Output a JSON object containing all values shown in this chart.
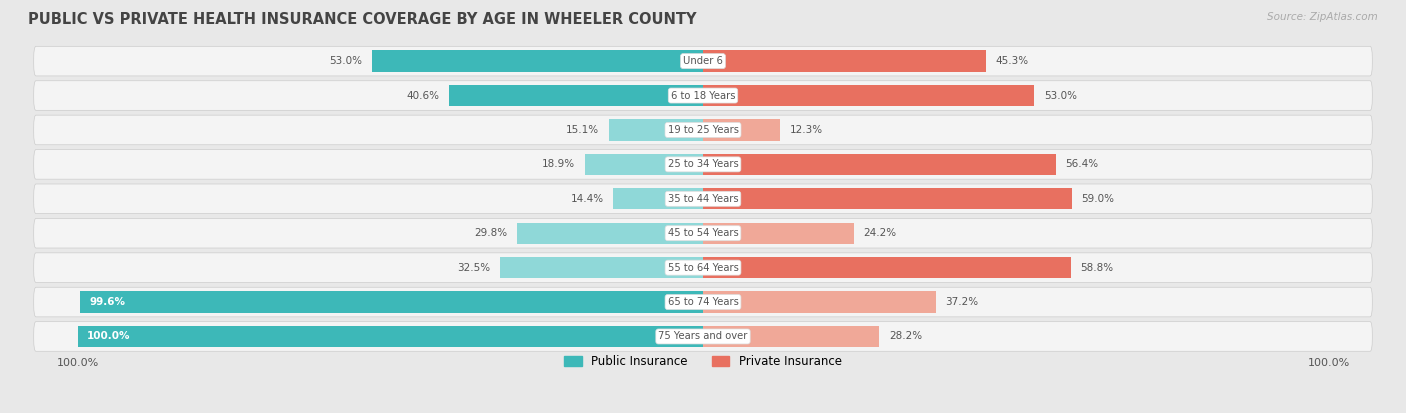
{
  "title": "PUBLIC VS PRIVATE HEALTH INSURANCE COVERAGE BY AGE IN WHEELER COUNTY",
  "source": "Source: ZipAtlas.com",
  "categories": [
    "Under 6",
    "6 to 18 Years",
    "19 to 25 Years",
    "25 to 34 Years",
    "35 to 44 Years",
    "45 to 54 Years",
    "55 to 64 Years",
    "65 to 74 Years",
    "75 Years and over"
  ],
  "public_values": [
    53.0,
    40.6,
    15.1,
    18.9,
    14.4,
    29.8,
    32.5,
    99.6,
    100.0
  ],
  "private_values": [
    45.3,
    53.0,
    12.3,
    56.4,
    59.0,
    24.2,
    58.8,
    37.2,
    28.2
  ],
  "public_color_strong": "#3db8b8",
  "public_color_light": "#8fd8d8",
  "private_color_strong": "#e87060",
  "private_color_light": "#f0a898",
  "bg_color": "#e8e8e8",
  "row_bg_color": "#f4f4f4",
  "title_color": "#444444",
  "label_color": "#555555",
  "source_color": "#aaaaaa",
  "bar_height": 0.62,
  "max_pct": 100.0,
  "strong_threshold": 40.0
}
